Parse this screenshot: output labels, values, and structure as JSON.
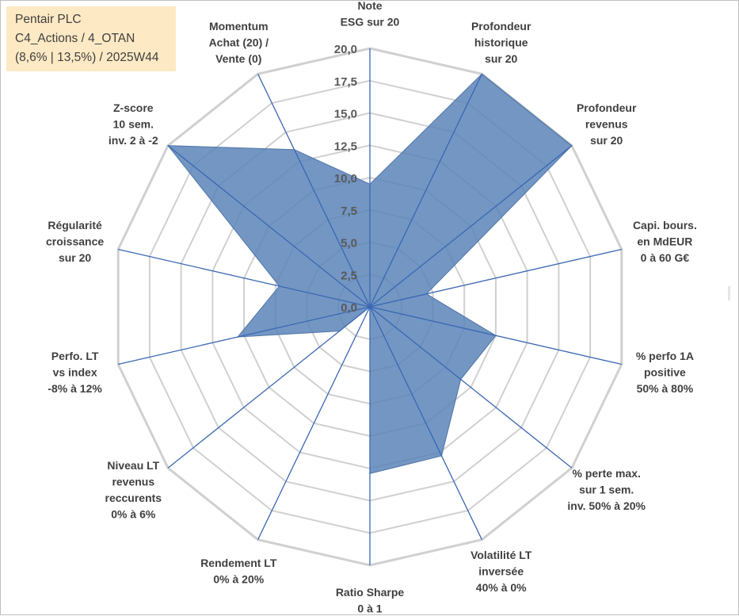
{
  "title_box": {
    "line1": "Pentair PLC",
    "line2": "C4_Actions / 4_OTAN",
    "line3": "(8,6% | 13,5%) / 2025W44"
  },
  "chart_data": {
    "type": "radar",
    "range": [
      0,
      20
    ],
    "ticks": [
      "0,0",
      "2,5",
      "5,0",
      "7,5",
      "10,0",
      "12,5",
      "15,0",
      "17,5",
      "20,0"
    ],
    "categories": [
      [
        "Note",
        "ESG sur 20"
      ],
      [
        "Profondeur",
        "historique",
        "sur 20"
      ],
      [
        "Profondeur",
        "revenus",
        "sur 20"
      ],
      [
        "Capi. bours.",
        "en MdEUR",
        "0 à 60 G€"
      ],
      [
        "% perfo 1A",
        "positive",
        "50% à 80%"
      ],
      [
        "% perte max.",
        "sur 1 sem.",
        "inv. 50% à 20%"
      ],
      [
        "Volatilité LT",
        "inversée",
        "40% à 0%"
      ],
      [
        "Ratio Sharpe",
        "0 à 1"
      ],
      [
        "Rendement LT",
        "0% à 20%"
      ],
      [
        "Niveau LT",
        "revenus",
        "reccurents",
        "0% à 6%"
      ],
      [
        "Perfo. LT",
        "vs index",
        "-8% à 12%"
      ],
      [
        "Régularité",
        "croissance",
        "sur 20"
      ],
      [
        "Z-score",
        "10 sem.",
        "inv. 2 à -2"
      ],
      [
        "Momentum",
        "Achat (20) /",
        "Vente (0)"
      ]
    ],
    "series": [
      {
        "name": "Pentair PLC",
        "color": "#5b84b8",
        "values": [
          9.5,
          20.0,
          20.0,
          4.5,
          10.0,
          9.0,
          12.8,
          12.9,
          0.0,
          3.0,
          10.5,
          7.2,
          20.0,
          13.5
        ]
      }
    ],
    "grid": true
  }
}
